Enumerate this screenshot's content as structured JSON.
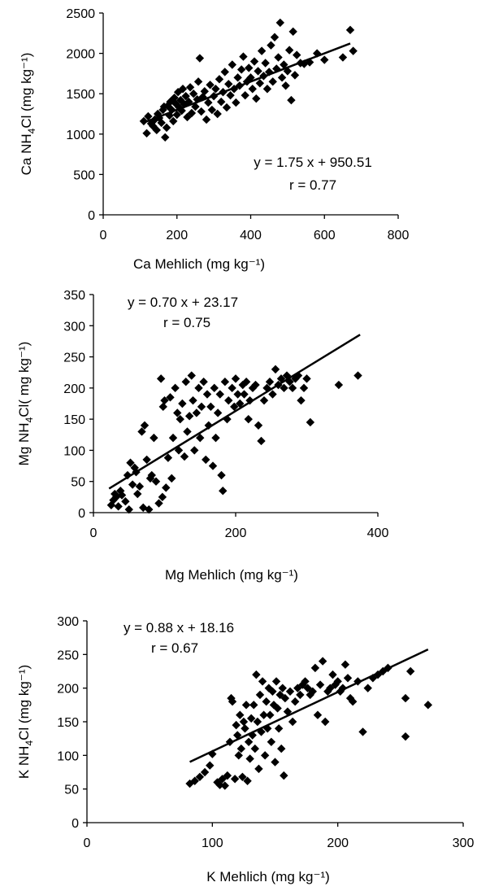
{
  "chart_data": [
    {
      "type": "scatter",
      "title": "",
      "xlabel": "Ca Mehlich (mg kg⁻¹)",
      "ylabel_parts": [
        "Ca NH",
        "4",
        "Cl (mg kg⁻¹)"
      ],
      "xlim": [
        0,
        800
      ],
      "ylim": [
        0,
        2500
      ],
      "xticks": [
        "0",
        "200",
        "400",
        "600",
        "800"
      ],
      "yticks": [
        "0",
        "500",
        "1000",
        "1500",
        "2000",
        "2500"
      ],
      "grid": false,
      "annotations": {
        "equation": "y = 1.75 x + 950.51",
        "r": "r = 0.77"
      },
      "trendline": {
        "slope": 1.75,
        "intercept": 950.51,
        "x_range": [
          110,
          670
        ]
      },
      "points": [
        [
          110,
          1160
        ],
        [
          118,
          1010
        ],
        [
          122,
          1220
        ],
        [
          130,
          1130
        ],
        [
          135,
          1100
        ],
        [
          140,
          1180
        ],
        [
          145,
          1050
        ],
        [
          148,
          1250
        ],
        [
          152,
          1200
        ],
        [
          158,
          1140
        ],
        [
          162,
          1300
        ],
        [
          165,
          1340
        ],
        [
          168,
          960
        ],
        [
          172,
          1080
        ],
        [
          175,
          1350
        ],
        [
          180,
          1230
        ],
        [
          182,
          1400
        ],
        [
          186,
          1300
        ],
        [
          190,
          1160
        ],
        [
          193,
          1450
        ],
        [
          196,
          1380
        ],
        [
          200,
          1240
        ],
        [
          203,
          1520
        ],
        [
          206,
          1330
        ],
        [
          210,
          1420
        ],
        [
          213,
          1290
        ],
        [
          216,
          1560
        ],
        [
          220,
          1370
        ],
        [
          224,
          1470
        ],
        [
          228,
          1210
        ],
        [
          232,
          1400
        ],
        [
          236,
          1580
        ],
        [
          240,
          1260
        ],
        [
          245,
          1500
        ],
        [
          250,
          1340
        ],
        [
          255,
          1430
        ],
        [
          258,
          1650
        ],
        [
          262,
          1940
        ],
        [
          266,
          1280
        ],
        [
          270,
          1460
        ],
        [
          275,
          1530
        ],
        [
          280,
          1180
        ],
        [
          285,
          1390
        ],
        [
          290,
          1610
        ],
        [
          295,
          1300
        ],
        [
          300,
          1470
        ],
        [
          305,
          1560
        ],
        [
          310,
          1250
        ],
        [
          315,
          1680
        ],
        [
          320,
          1400
        ],
        [
          325,
          1520
        ],
        [
          330,
          1770
        ],
        [
          335,
          1330
        ],
        [
          340,
          1620
        ],
        [
          345,
          1480
        ],
        [
          350,
          1860
        ],
        [
          355,
          1560
        ],
        [
          360,
          1390
        ],
        [
          365,
          1700
        ],
        [
          370,
          1600
        ],
        [
          375,
          1800
        ],
        [
          380,
          1960
        ],
        [
          385,
          1480
        ],
        [
          390,
          1650
        ],
        [
          395,
          1820
        ],
        [
          400,
          1700
        ],
        [
          405,
          1560
        ],
        [
          410,
          1900
        ],
        [
          415,
          1440
        ],
        [
          420,
          1780
        ],
        [
          425,
          1630
        ],
        [
          430,
          2030
        ],
        [
          435,
          1720
        ],
        [
          440,
          1880
        ],
        [
          445,
          1560
        ],
        [
          450,
          1770
        ],
        [
          455,
          2100
        ],
        [
          460,
          1650
        ],
        [
          465,
          2200
        ],
        [
          470,
          1810
        ],
        [
          475,
          1950
        ],
        [
          480,
          2380
        ],
        [
          485,
          1700
        ],
        [
          490,
          1860
        ],
        [
          495,
          1600
        ],
        [
          500,
          1780
        ],
        [
          505,
          2040
        ],
        [
          510,
          1420
        ],
        [
          515,
          2270
        ],
        [
          520,
          1730
        ],
        [
          525,
          1980
        ],
        [
          535,
          1880
        ],
        [
          545,
          1870
        ],
        [
          560,
          1890
        ],
        [
          580,
          2000
        ],
        [
          600,
          1920
        ],
        [
          650,
          1950
        ],
        [
          670,
          2290
        ],
        [
          678,
          2030
        ]
      ]
    },
    {
      "type": "scatter",
      "title": "",
      "xlabel": "Mg Mehlich (mg kg⁻¹)",
      "ylabel_parts": [
        "Mg NH",
        "4",
        "Cl( mg kg⁻¹)"
      ],
      "xlim": [
        0,
        400
      ],
      "ylim": [
        0,
        350
      ],
      "xticks": [
        "0",
        "200",
        "400"
      ],
      "yticks": [
        "0",
        "50",
        "100",
        "150",
        "200",
        "250",
        "300",
        "350"
      ],
      "grid": false,
      "annotations": {
        "equation": "y = 0.70 x + 23.17",
        "r": "r = 0.75"
      },
      "trendline": {
        "slope": 0.7,
        "intercept": 23.17,
        "x_range": [
          22,
          375
        ]
      },
      "points": [
        [
          25,
          12
        ],
        [
          28,
          20
        ],
        [
          30,
          30
        ],
        [
          32,
          25
        ],
        [
          35,
          10
        ],
        [
          38,
          35
        ],
        [
          40,
          28
        ],
        [
          45,
          18
        ],
        [
          48,
          60
        ],
        [
          50,
          5
        ],
        [
          52,
          80
        ],
        [
          55,
          45
        ],
        [
          58,
          72
        ],
        [
          60,
          65
        ],
        [
          62,
          30
        ],
        [
          65,
          42
        ],
        [
          68,
          130
        ],
        [
          70,
          8
        ],
        [
          72,
          140
        ],
        [
          75,
          85
        ],
        [
          78,
          5
        ],
        [
          80,
          55
        ],
        [
          82,
          60
        ],
        [
          85,
          120
        ],
        [
          88,
          50
        ],
        [
          92,
          15
        ],
        [
          95,
          215
        ],
        [
          97,
          25
        ],
        [
          98,
          170
        ],
        [
          100,
          180
        ],
        [
          102,
          40
        ],
        [
          105,
          88
        ],
        [
          108,
          185
        ],
        [
          110,
          55
        ],
        [
          112,
          120
        ],
        [
          115,
          200
        ],
        [
          118,
          160
        ],
        [
          120,
          100
        ],
        [
          122,
          150
        ],
        [
          125,
          175
        ],
        [
          128,
          90
        ],
        [
          130,
          210
        ],
        [
          132,
          130
        ],
        [
          135,
          155
        ],
        [
          138,
          220
        ],
        [
          140,
          180
        ],
        [
          142,
          100
        ],
        [
          145,
          160
        ],
        [
          148,
          200
        ],
        [
          150,
          120
        ],
        [
          152,
          170
        ],
        [
          155,
          210
        ],
        [
          158,
          85
        ],
        [
          160,
          190
        ],
        [
          162,
          140
        ],
        [
          165,
          170
        ],
        [
          168,
          75
        ],
        [
          170,
          200
        ],
        [
          172,
          120
        ],
        [
          175,
          160
        ],
        [
          178,
          190
        ],
        [
          180,
          60
        ],
        [
          182,
          35
        ],
        [
          185,
          210
        ],
        [
          188,
          150
        ],
        [
          190,
          180
        ],
        [
          195,
          200
        ],
        [
          198,
          170
        ],
        [
          200,
          215
        ],
        [
          203,
          190
        ],
        [
          206,
          175
        ],
        [
          210,
          205
        ],
        [
          212,
          190
        ],
        [
          215,
          210
        ],
        [
          218,
          150
        ],
        [
          220,
          180
        ],
        [
          224,
          200
        ],
        [
          228,
          205
        ],
        [
          232,
          140
        ],
        [
          236,
          115
        ],
        [
          240,
          180
        ],
        [
          244,
          200
        ],
        [
          248,
          210
        ],
        [
          252,
          190
        ],
        [
          256,
          230
        ],
        [
          260,
          205
        ],
        [
          264,
          215
        ],
        [
          268,
          200
        ],
        [
          272,
          220
        ],
        [
          276,
          210
        ],
        [
          280,
          200
        ],
        [
          284,
          215
        ],
        [
          288,
          220
        ],
        [
          292,
          180
        ],
        [
          296,
          200
        ],
        [
          300,
          215
        ],
        [
          305,
          145
        ],
        [
          345,
          205
        ],
        [
          372,
          220
        ]
      ]
    },
    {
      "type": "scatter",
      "title": "",
      "xlabel": "K Mehlich (mg kg⁻¹)",
      "ylabel_parts": [
        "K NH",
        "4",
        "Cl  (mg kg⁻¹)"
      ],
      "xlim": [
        0,
        300
      ],
      "ylim": [
        0,
        300
      ],
      "xticks": [
        "0",
        "100",
        "200",
        "300"
      ],
      "yticks": [
        "0",
        "50",
        "100",
        "150",
        "200",
        "250",
        "300"
      ],
      "grid": false,
      "annotations": {
        "equation": "y = 0.88 x + 18.16",
        "r": "r = 0.67"
      },
      "trendline": {
        "slope": 0.88,
        "intercept": 18.16,
        "x_range": [
          82,
          272
        ]
      },
      "points": [
        [
          82,
          58
        ],
        [
          86,
          62
        ],
        [
          90,
          68
        ],
        [
          94,
          75
        ],
        [
          98,
          85
        ],
        [
          100,
          102
        ],
        [
          104,
          60
        ],
        [
          106,
          56
        ],
        [
          108,
          65
        ],
        [
          110,
          55
        ],
        [
          112,
          70
        ],
        [
          114,
          120
        ],
        [
          115,
          185
        ],
        [
          116,
          180
        ],
        [
          118,
          65
        ],
        [
          119,
          145
        ],
        [
          120,
          130
        ],
        [
          121,
          100
        ],
        [
          122,
          160
        ],
        [
          123,
          110
        ],
        [
          124,
          68
        ],
        [
          125,
          150
        ],
        [
          126,
          140
        ],
        [
          127,
          175
        ],
        [
          128,
          62
        ],
        [
          129,
          120
        ],
        [
          130,
          95
        ],
        [
          131,
          155
        ],
        [
          132,
          130
        ],
        [
          133,
          175
        ],
        [
          134,
          110
        ],
        [
          135,
          220
        ],
        [
          136,
          150
        ],
        [
          137,
          80
        ],
        [
          138,
          190
        ],
        [
          139,
          135
        ],
        [
          140,
          210
        ],
        [
          141,
          160
        ],
        [
          142,
          100
        ],
        [
          143,
          180
        ],
        [
          144,
          140
        ],
        [
          145,
          200
        ],
        [
          146,
          160
        ],
        [
          147,
          120
        ],
        [
          148,
          195
        ],
        [
          149,
          175
        ],
        [
          150,
          90
        ],
        [
          151,
          210
        ],
        [
          152,
          170
        ],
        [
          153,
          140
        ],
        [
          154,
          190
        ],
        [
          155,
          110
        ],
        [
          156,
          200
        ],
        [
          157,
          70
        ],
        [
          158,
          185
        ],
        [
          160,
          165
        ],
        [
          162,
          195
        ],
        [
          164,
          150
        ],
        [
          166,
          180
        ],
        [
          168,
          200
        ],
        [
          170,
          190
        ],
        [
          172,
          205
        ],
        [
          174,
          210
        ],
        [
          176,
          200
        ],
        [
          178,
          190
        ],
        [
          180,
          195
        ],
        [
          182,
          230
        ],
        [
          184,
          160
        ],
        [
          186,
          205
        ],
        [
          188,
          240
        ],
        [
          190,
          150
        ],
        [
          192,
          195
        ],
        [
          194,
          200
        ],
        [
          196,
          220
        ],
        [
          198,
          205
        ],
        [
          200,
          210
        ],
        [
          202,
          195
        ],
        [
          204,
          200
        ],
        [
          206,
          235
        ],
        [
          208,
          215
        ],
        [
          210,
          185
        ],
        [
          212,
          180
        ],
        [
          216,
          210
        ],
        [
          220,
          135
        ],
        [
          224,
          200
        ],
        [
          228,
          215
        ],
        [
          232,
          220
        ],
        [
          236,
          225
        ],
        [
          240,
          230
        ],
        [
          254,
          185
        ],
        [
          254,
          128
        ],
        [
          258,
          225
        ],
        [
          272,
          175
        ]
      ]
    }
  ]
}
